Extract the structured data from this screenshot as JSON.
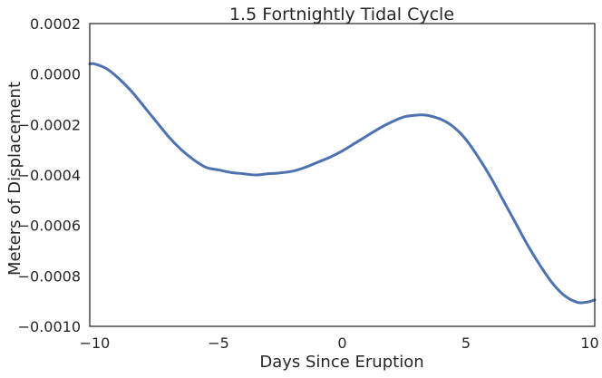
{
  "chart_data": {
    "type": "line",
    "title": "1.5 Fortnightly Tidal Cycle",
    "xlabel": "Days Since Eruption",
    "ylabel": "Meters of Displacement",
    "xlim": [
      -10.2,
      10.2
    ],
    "ylim": [
      -0.001,
      0.0002
    ],
    "xticks": [
      -10,
      -5,
      0,
      5,
      10
    ],
    "xtick_labels": [
      "−10",
      "−5",
      "0",
      "5",
      "10"
    ],
    "yticks": [
      0.0002,
      0.0,
      -0.0002,
      -0.0004,
      -0.0006,
      -0.0008,
      -0.001
    ],
    "ytick_labels": [
      "0.0002",
      "0.0000",
      "−0.0002",
      "−0.0004",
      "−0.0006",
      "−0.0008",
      "−0.0010"
    ],
    "grid": false,
    "line_color": "#4c72b0",
    "series": [
      {
        "x": [
          -10.2,
          -10.0,
          -9.5,
          -9.0,
          -8.5,
          -8.0,
          -7.5,
          -7.0,
          -6.5,
          -6.0,
          -5.5,
          -5.0,
          -4.5,
          -4.0,
          -3.5,
          -3.0,
          -2.6,
          -2.0,
          -1.5,
          -1.0,
          -0.5,
          0.0,
          0.5,
          1.0,
          1.5,
          2.0,
          2.5,
          3.0,
          3.2,
          3.5,
          4.0,
          4.5,
          5.0,
          5.5,
          6.0,
          6.5,
          7.0,
          7.5,
          8.0,
          8.5,
          9.0,
          9.5,
          9.8,
          10.0,
          10.2
        ],
        "y": [
          4e-05,
          4e-05,
          2e-05,
          -2e-05,
          -7e-05,
          -0.00013,
          -0.00019,
          -0.00025,
          -0.0003,
          -0.00034,
          -0.00037,
          -0.00038,
          -0.00039,
          -0.000395,
          -0.0004,
          -0.000395,
          -0.000393,
          -0.000385,
          -0.00037,
          -0.00035,
          -0.00033,
          -0.000305,
          -0.000275,
          -0.000245,
          -0.000215,
          -0.00019,
          -0.00017,
          -0.000163,
          -0.000162,
          -0.000165,
          -0.00018,
          -0.00021,
          -0.00026,
          -0.00033,
          -0.00041,
          -0.0005,
          -0.00059,
          -0.00068,
          -0.00076,
          -0.00083,
          -0.00088,
          -0.000905,
          -0.000905,
          -0.000902,
          -0.000895
        ]
      }
    ]
  }
}
